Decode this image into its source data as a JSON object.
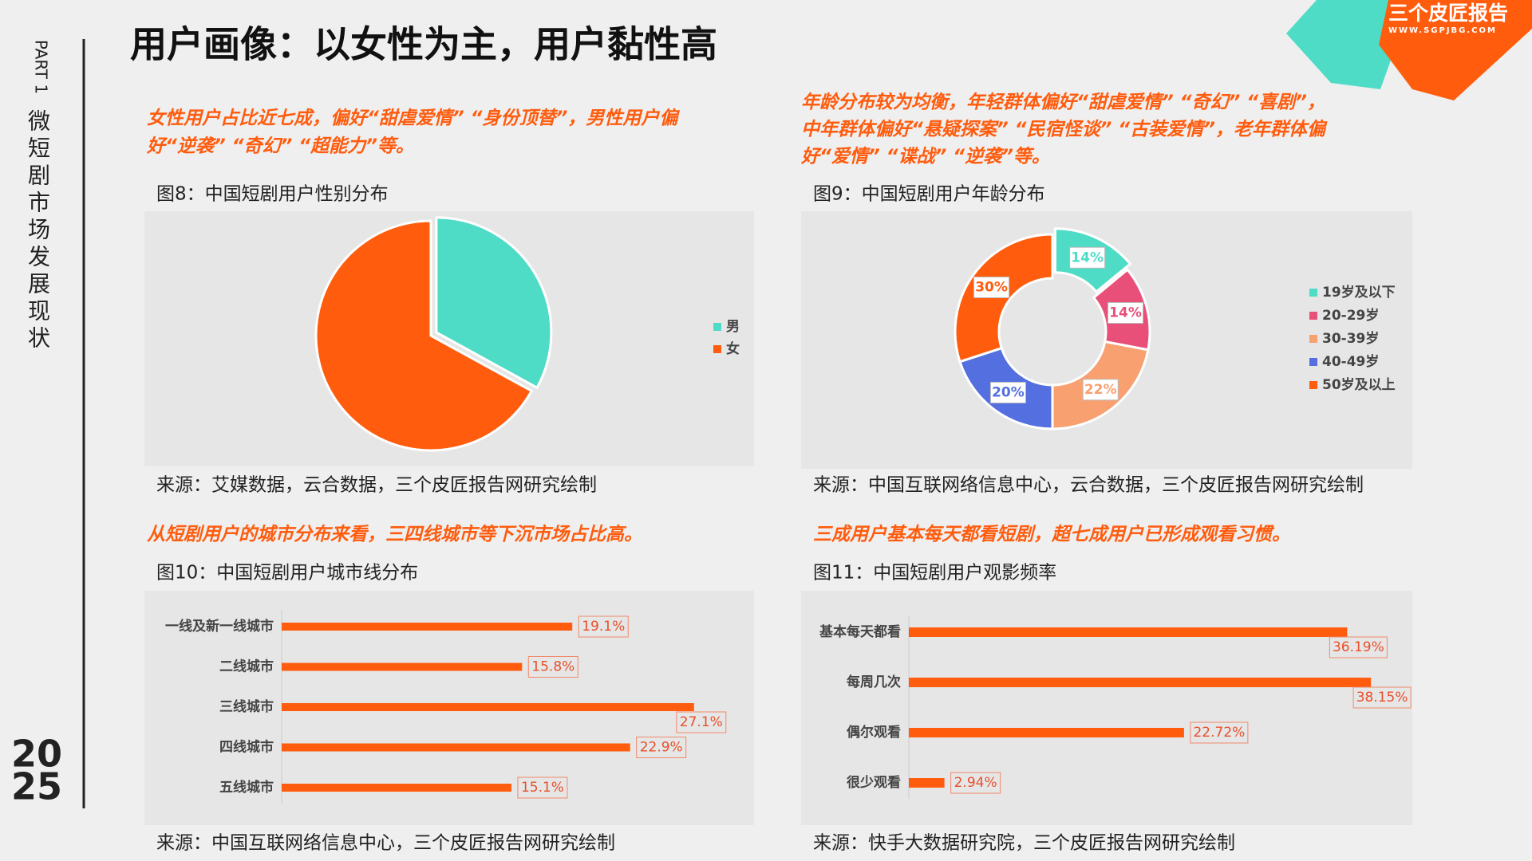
{
  "page": {
    "part": "PART 1",
    "section": "微短剧市场发展现状",
    "year": [
      "20",
      "25"
    ],
    "title": "用户画像：以女性为主，用户黏性高",
    "brand": "三个皮匠报告",
    "brand_url": "WWW.SGPJBG.COM"
  },
  "chart_data": [
    {
      "type": "pie",
      "note": [
        "女性用户占比近七成，偏好“甜虐爱情” “身份顶替”，男性用户偏",
        "好“逆袭” “奇幻” “超能力”等。"
      ],
      "title": "图8：中国短剧用户性别分布",
      "categories": [
        "男",
        "女"
      ],
      "values": [
        33,
        67
      ],
      "colors": [
        "#4fdcc6",
        "#ff5c0e"
      ],
      "source": "来源：艾媒数据，云合数据，三个皮匠报告网研究绘制"
    },
    {
      "type": "donut",
      "note": [
        "年龄分布较为均衡，年轻群体偏好“甜虐爱情” “奇幻” “喜剧”，",
        "中年群体偏好“悬疑探案” “民宿怪谈” “古装爱情”，老年群体偏",
        "好“爱情” “谍战” “逆袭”等。"
      ],
      "title": "图9：中国短剧用户年龄分布",
      "categories": [
        "19岁及以下",
        "20-29岁",
        "30-39岁",
        "40-49岁",
        "50岁及以上"
      ],
      "values": [
        14,
        14,
        22,
        20,
        30
      ],
      "value_labels": [
        "14%",
        "14%",
        "22%",
        "20%",
        "30%"
      ],
      "colors": [
        "#4fdcc6",
        "#e8507a",
        "#f8a070",
        "#5470e0",
        "#ff5c0e"
      ],
      "source": "来源：中国互联网络信息中心，云合数据，三个皮匠报告网研究绘制"
    },
    {
      "type": "barh",
      "note": [
        "从短剧用户的城市分布来看，三四线城市等下沉市场占比高。"
      ],
      "title": "图10：中国短剧用户城市线分布",
      "categories": [
        "一线及新一线城市",
        "二线城市",
        "三线城市",
        "四线城市",
        "五线城市"
      ],
      "values": [
        19.1,
        15.8,
        27.1,
        22.9,
        15.1
      ],
      "value_labels": [
        "19.1%",
        "15.8%",
        "27.1%",
        "22.9%",
        "15.1%"
      ],
      "color": "#ff5c0e",
      "source": "来源：中国互联网络信息中心，三个皮匠报告网研究绘制"
    },
    {
      "type": "barh",
      "note": [
        "三成用户基本每天都看短剧，超七成用户已形成观看习惯。"
      ],
      "title": "图11：中国短剧用户观影频率",
      "categories": [
        "基本每天都看",
        "每周几次",
        "偶尔观看",
        "很少观看"
      ],
      "values": [
        36.19,
        38.15,
        22.72,
        2.94
      ],
      "value_labels": [
        "36.19%",
        "38.15%",
        "22.72%",
        "2.94%"
      ],
      "color": "#ff5c0e",
      "source": "来源：快手大数据研究院，三个皮匠报告网研究绘制"
    }
  ]
}
